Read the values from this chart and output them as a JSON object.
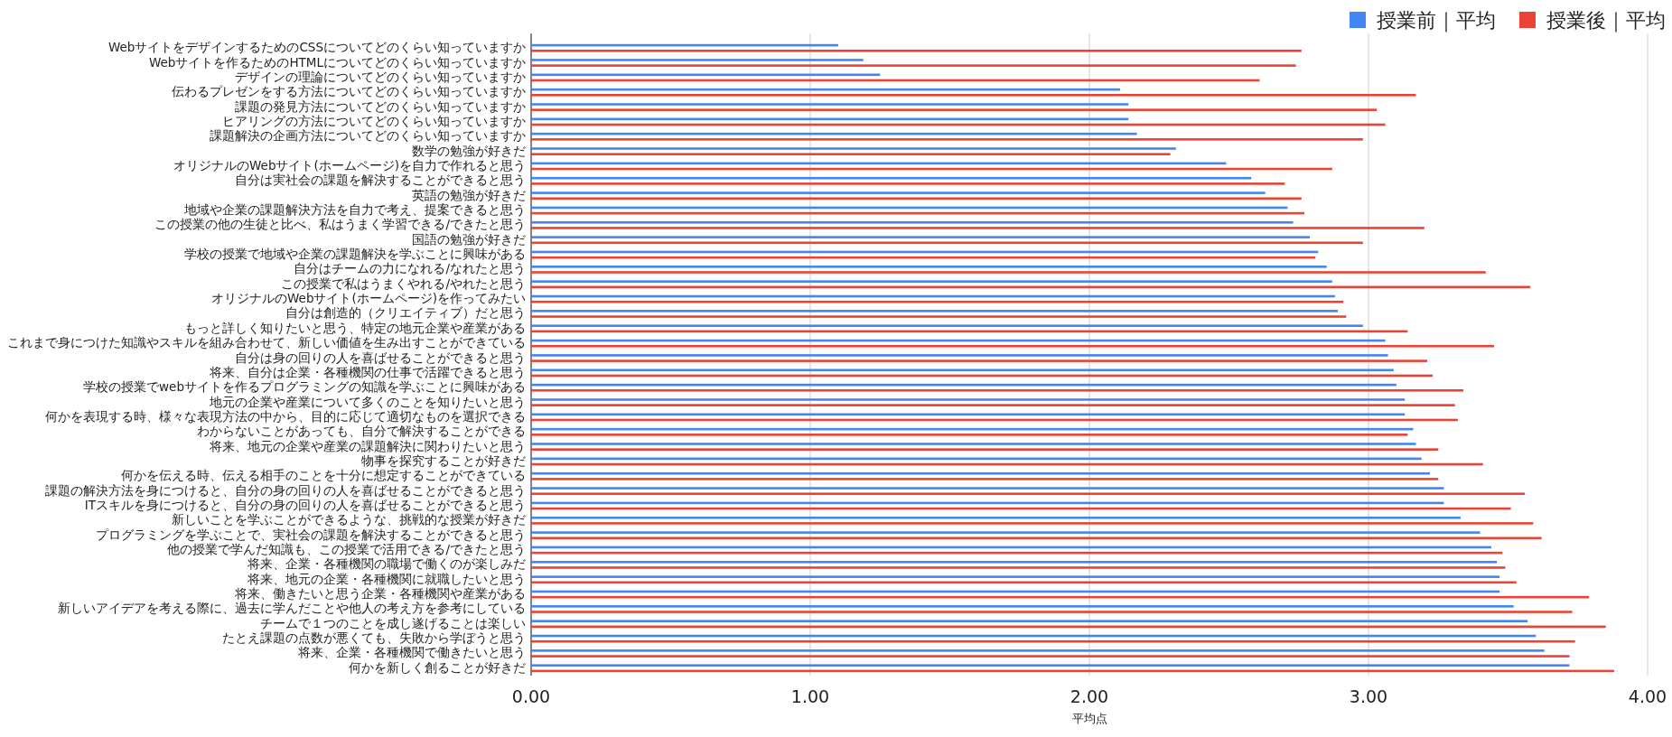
{
  "chart_data": {
    "type": "bar",
    "orientation": "horizontal",
    "xlabel": "平均点",
    "legend": "top right",
    "grid": "x",
    "categories": [
      "WebサイトをデザインするためのCSSについてどのくらい知っていますか",
      "Webサイトを作るためのHTMLについてどのくらい知っていますか",
      "デザインの理論についてどのくらい知っていますか",
      "伝わるプレゼンをする方法についてどのくらい知っていますか",
      "課題の発見方法についてどのくらい知っていますか",
      "ヒアリングの方法についてどのくらい知っていますか",
      "課題解決の企画方法についてどのくらい知っていますか",
      "数学の勉強が好きだ",
      "オリジナルのWebサイト(ホームページ)を自力で作れると思う",
      "自分は実社会の課題を解決することができると思う",
      "英語の勉強が好きだ",
      "地域や企業の課題解決方法を自力で考え、提案できると思う",
      "この授業の他の生徒と比べ、私はうまく学習できる/できたと思う",
      "国語の勉強が好きだ",
      "学校の授業で地域や企業の課題解決を学ぶことに興味がある",
      "自分はチームの力になれる/なれたと思う",
      "この授業で私はうまくやれる/やれたと思う",
      "オリジナルのWebサイト(ホームページ)を作ってみたい",
      "自分は創造的（クリエイティブ）だと思う",
      "もっと詳しく知りたいと思う、特定の地元企業や産業がある",
      "これまで身につけた知識やスキルを組み合わせて、新しい価値を生み出すことができている",
      "自分は身の回りの人を喜ばせることができると思う",
      "将来、自分は企業・各種機関の仕事で活躍できると思う",
      "学校の授業でwebサイトを作るプログラミングの知識を学ぶことに興味がある",
      "地元の企業や産業について多くのことを知りたいと思う",
      "何かを表現する時、様々な表現方法の中から、目的に応じて適切なものを選択できる",
      "わからないことがあっても、自分で解決することができる",
      "将来、地元の企業や産業の課題解決に関わりたいと思う",
      "物事を探究することが好きだ",
      "何かを伝える時、伝える相手のことを十分に想定することができている",
      "課題の解決方法を身につけると、自分の身の回りの人を喜ばせることができると思う",
      "ITスキルを身につけると、自分の身の回りの人を喜ばせることができると思う",
      "新しいことを学ぶことができるような、挑戦的な授業が好きだ",
      "プログラミングを学ぶことで、実社会の課題を解決することができると思う",
      "他の授業で学んだ知識も、この授業で活用できる/できたと思う",
      "将来、企業・各種機関の職場で働くのが楽しみだ",
      "将来、地元の企業・各種機関に就職したいと思う",
      "将来、働きたいと思う企業・各種機関や産業がある",
      "新しいアイデアを考える際に、過去に学んだことや他人の考え方を参考にしている",
      "チームで１つのことを成し遂げることは楽しい",
      "たとえ課題の点数が悪くても、失敗から学ぼうと思う",
      "将来、企業・各種機関で働きたいと思う",
      "何かを新しく創ることが好きだ"
    ],
    "series": [
      {
        "name": "授業前｜平均",
        "color": "#4285f4",
        "values": [
          1.1,
          1.19,
          1.25,
          2.11,
          2.14,
          2.14,
          2.17,
          2.31,
          2.49,
          2.58,
          2.63,
          2.71,
          2.73,
          2.79,
          2.82,
          2.85,
          2.87,
          2.88,
          2.89,
          2.98,
          3.06,
          3.07,
          3.09,
          3.1,
          3.13,
          3.13,
          3.16,
          3.17,
          3.19,
          3.22,
          3.27,
          3.27,
          3.33,
          3.4,
          3.44,
          3.46,
          3.47,
          3.47,
          3.52,
          3.57,
          3.6,
          3.63,
          3.72
        ]
      },
      {
        "name": "授業後｜平均",
        "color": "#ea4335",
        "values": [
          2.76,
          2.74,
          2.61,
          3.17,
          3.03,
          3.06,
          2.98,
          2.29,
          2.87,
          2.7,
          2.76,
          2.77,
          3.2,
          2.98,
          2.81,
          3.42,
          3.58,
          2.91,
          2.92,
          3.14,
          3.45,
          3.21,
          3.23,
          3.34,
          3.31,
          3.32,
          3.14,
          3.25,
          3.41,
          3.25,
          3.56,
          3.51,
          3.59,
          3.62,
          3.48,
          3.49,
          3.53,
          3.79,
          3.73,
          3.85,
          3.74,
          3.72,
          3.88
        ]
      }
    ],
    "xlim": [
      0,
      4
    ],
    "xticks": [
      {
        "value": 0,
        "label": "0.00"
      },
      {
        "value": 1,
        "label": "1.00"
      },
      {
        "value": 2,
        "label": "2.00"
      },
      {
        "value": 3,
        "label": "3.00"
      },
      {
        "value": 4,
        "label": "4.00"
      }
    ]
  }
}
